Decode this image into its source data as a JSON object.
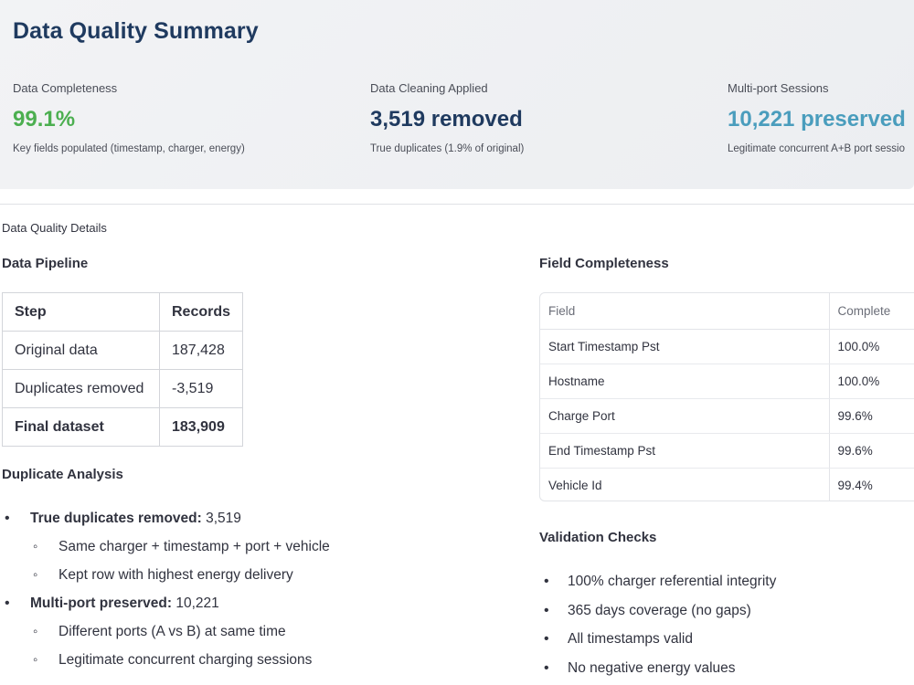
{
  "summary": {
    "title": "Data Quality Summary",
    "metrics": [
      {
        "label": "Data Completeness",
        "value": "99.1%",
        "note": "Key fields populated (timestamp, charger, energy)",
        "color": "#4caf50"
      },
      {
        "label": "Data Cleaning Applied",
        "value": "3,519 removed",
        "note": "True duplicates (1.9% of original)",
        "color": "#1f3a5f"
      },
      {
        "label": "Multi-port Sessions",
        "value": "10,221 preserved",
        "note": "Legitimate concurrent A+B port sessio",
        "color": "#4a9dbd"
      }
    ]
  },
  "details": {
    "label": "Data Quality Details",
    "pipeline": {
      "heading": "Data Pipeline",
      "headers": [
        "Step",
        "Records"
      ],
      "rows": [
        {
          "step": "Original data",
          "records": "187,428"
        },
        {
          "step": "Duplicates removed",
          "records": "-3,519"
        },
        {
          "step": "Final dataset",
          "records": "183,909"
        }
      ]
    },
    "duplicate_analysis": {
      "heading": "Duplicate Analysis",
      "items": [
        {
          "bold": "True duplicates removed:",
          "value": " 3,519",
          "subs": [
            "Same charger + timestamp + port + vehicle",
            "Kept row with highest energy delivery"
          ]
        },
        {
          "bold": "Multi-port preserved:",
          "value": " 10,221",
          "subs": [
            "Different ports (A vs B) at same time",
            "Legitimate concurrent charging sessions"
          ]
        }
      ]
    },
    "field_completeness": {
      "heading": "Field Completeness",
      "headers": [
        "Field",
        "Complete"
      ],
      "rows": [
        {
          "field": "Start Timestamp Pst",
          "complete": "100.0%"
        },
        {
          "field": "Hostname",
          "complete": "100.0%"
        },
        {
          "field": "Charge Port",
          "complete": "99.6%"
        },
        {
          "field": "End Timestamp Pst",
          "complete": "99.6%"
        },
        {
          "field": "Vehicle Id",
          "complete": "99.4%"
        }
      ]
    },
    "validation": {
      "heading": "Validation Checks",
      "items": [
        "100% charger referential integrity",
        "365 days coverage (no gaps)",
        "All timestamps valid",
        "No negative energy values"
      ]
    }
  }
}
